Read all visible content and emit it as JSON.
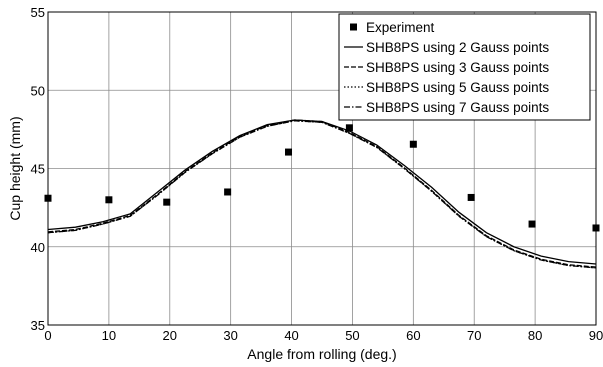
{
  "chart_data": {
    "type": "line",
    "title": "",
    "xlabel": "Angle from rolling (deg.)",
    "ylabel": "Cup height (mm)",
    "xlim": [
      0,
      90
    ],
    "ylim": [
      35,
      55
    ],
    "xticks": [
      0,
      10,
      20,
      30,
      40,
      50,
      60,
      70,
      80,
      90
    ],
    "yticks": [
      35,
      40,
      45,
      50,
      55
    ],
    "grid": true,
    "legend_position": "top-right",
    "series": [
      {
        "name": "Experiment",
        "kind": "markers",
        "color": "#000000",
        "x": [
          0,
          10,
          19.5,
          29.5,
          39.5,
          49.5,
          60,
          69.5,
          79.5,
          90
        ],
        "y": [
          43.1,
          43.0,
          42.85,
          43.5,
          46.05,
          47.6,
          46.55,
          43.15,
          41.45,
          41.2
        ]
      },
      {
        "name": "SHB8PS using 2 Gauss points",
        "kind": "line",
        "dash": "solid",
        "color": "#000000",
        "x": [
          0,
          4.5,
          9,
          13.5,
          18,
          22.5,
          27,
          31.5,
          36,
          40.5,
          45,
          49.5,
          54,
          58.5,
          63,
          67.5,
          72,
          76.5,
          81,
          85.5,
          90
        ],
        "y": [
          41.1,
          41.25,
          41.6,
          42.1,
          43.5,
          44.9,
          46.1,
          47.1,
          47.8,
          48.1,
          48.0,
          47.4,
          46.5,
          45.2,
          43.8,
          42.2,
          40.9,
          40.0,
          39.4,
          39.05,
          38.9
        ]
      },
      {
        "name": "SHB8PS using 3 Gauss points",
        "kind": "line",
        "dash": "dashed",
        "color": "#000000",
        "x": [
          0,
          4.5,
          9,
          13.5,
          18,
          22.5,
          27,
          31.5,
          36,
          40.5,
          45,
          49.5,
          54,
          58.5,
          63,
          67.5,
          72,
          76.5,
          81,
          85.5,
          90
        ],
        "y": [
          40.95,
          41.1,
          41.5,
          42.0,
          43.35,
          44.8,
          46.0,
          47.05,
          47.75,
          48.1,
          48.0,
          47.3,
          46.4,
          45.05,
          43.6,
          42.0,
          40.7,
          39.8,
          39.2,
          38.85,
          38.7
        ]
      },
      {
        "name": "SHB8PS using 5 Gauss points",
        "kind": "line",
        "dash": "dotted",
        "color": "#000000",
        "x": [
          0,
          4.5,
          9,
          13.5,
          18,
          22.5,
          27,
          31.5,
          36,
          40.5,
          45,
          49.5,
          54,
          58.5,
          63,
          67.5,
          72,
          76.5,
          81,
          85.5,
          90
        ],
        "y": [
          40.9,
          41.05,
          41.45,
          41.95,
          43.3,
          44.75,
          45.95,
          47.0,
          47.7,
          48.05,
          47.95,
          47.25,
          46.35,
          45.0,
          43.55,
          41.95,
          40.65,
          39.75,
          39.15,
          38.8,
          38.65
        ]
      },
      {
        "name": "SHB8PS using 7 Gauss points",
        "kind": "line",
        "dash": "dashdot",
        "color": "#000000",
        "x": [
          0,
          4.5,
          9,
          13.5,
          18,
          22.5,
          27,
          31.5,
          36,
          40.5,
          45,
          49.5,
          54,
          58.5,
          63,
          67.5,
          72,
          76.5,
          81,
          85.5,
          90
        ],
        "y": [
          40.9,
          41.05,
          41.45,
          41.95,
          43.3,
          44.75,
          45.95,
          47.0,
          47.7,
          48.05,
          47.95,
          47.25,
          46.35,
          45.0,
          43.55,
          41.95,
          40.65,
          39.75,
          39.15,
          38.8,
          38.65
        ]
      }
    ]
  }
}
